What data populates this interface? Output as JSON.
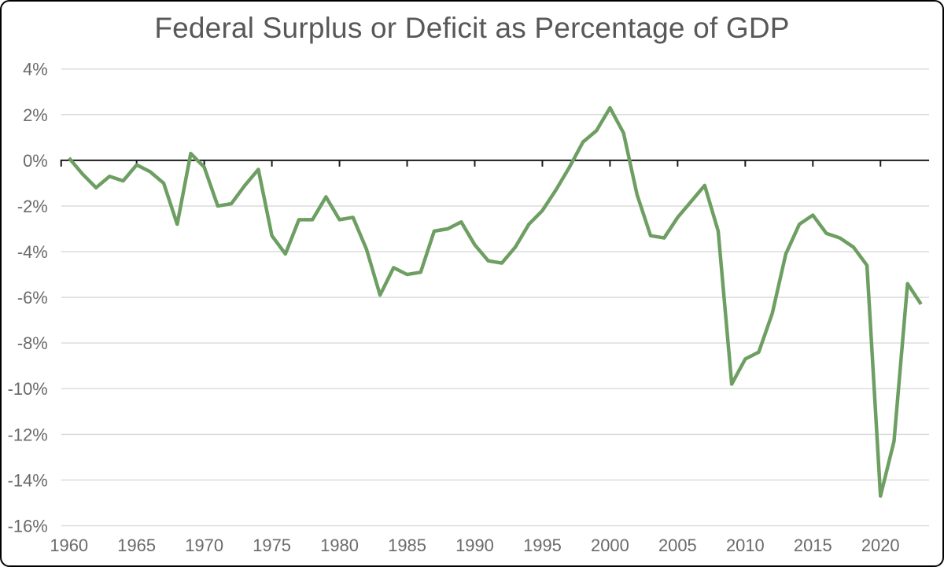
{
  "title": "Federal Surplus or Deficit as Percentage of GDP",
  "colors": {
    "line": "#6d9e62",
    "grid": "#dcdcdc",
    "zero_axis": "#1a1a1a",
    "axis_text": "#6a6a6a",
    "title_text": "#58585a",
    "border": "#000000",
    "background": "#ffffff"
  },
  "chart_data": {
    "type": "line",
    "title": "Federal Surplus or Deficit as Percentage of GDP",
    "series_name": "Federal surplus or deficit (% of GDP)",
    "xlabel": "",
    "ylabel": "",
    "grid": true,
    "legend_position": "none",
    "xlim": [
      1960,
      2023
    ],
    "ylim": [
      -16,
      4
    ],
    "x": [
      1960,
      1961,
      1962,
      1963,
      1964,
      1965,
      1966,
      1967,
      1968,
      1969,
      1970,
      1971,
      1972,
      1973,
      1974,
      1975,
      1976,
      1977,
      1978,
      1979,
      1980,
      1981,
      1982,
      1983,
      1984,
      1985,
      1986,
      1987,
      1988,
      1989,
      1990,
      1991,
      1992,
      1993,
      1994,
      1995,
      1996,
      1997,
      1998,
      1999,
      2000,
      2001,
      2002,
      2003,
      2004,
      2005,
      2006,
      2007,
      2008,
      2009,
      2010,
      2011,
      2012,
      2013,
      2014,
      2015,
      2016,
      2017,
      2018,
      2019,
      2020,
      2021,
      2022,
      2023
    ],
    "values": [
      0.1,
      -0.6,
      -1.2,
      -0.7,
      -0.9,
      -0.2,
      -0.5,
      -1.0,
      -2.8,
      0.3,
      -0.3,
      -2.0,
      -1.9,
      -1.1,
      -0.4,
      -3.3,
      -4.1,
      -2.6,
      -2.6,
      -1.6,
      -2.6,
      -2.5,
      -3.9,
      -5.9,
      -4.7,
      -5.0,
      -4.9,
      -3.1,
      -3.0,
      -2.7,
      -3.7,
      -4.4,
      -4.5,
      -3.8,
      -2.8,
      -2.2,
      -1.3,
      -0.3,
      0.8,
      1.3,
      2.3,
      1.2,
      -1.5,
      -3.3,
      -3.4,
      -2.5,
      -1.8,
      -1.1,
      -3.1,
      -9.8,
      -8.7,
      -8.4,
      -6.7,
      -4.1,
      -2.8,
      -2.4,
      -3.2,
      -3.4,
      -3.8,
      -4.6,
      -14.7,
      -12.3,
      -5.4,
      -6.3
    ],
    "y_ticks": [
      {
        "value": 4,
        "label": "4%"
      },
      {
        "value": 2,
        "label": "2%"
      },
      {
        "value": 0,
        "label": "0%"
      },
      {
        "value": -2,
        "label": "-2%"
      },
      {
        "value": -4,
        "label": "-4%"
      },
      {
        "value": -6,
        "label": "-6%"
      },
      {
        "value": -8,
        "label": "-8%"
      },
      {
        "value": -10,
        "label": "-10%"
      },
      {
        "value": -12,
        "label": "-12%"
      },
      {
        "value": -14,
        "label": "-14%"
      },
      {
        "value": -16,
        "label": "-16%"
      }
    ],
    "x_ticks": [
      {
        "value": 1960,
        "label": "1960"
      },
      {
        "value": 1965,
        "label": "1965"
      },
      {
        "value": 1970,
        "label": "1970"
      },
      {
        "value": 1975,
        "label": "1975"
      },
      {
        "value": 1980,
        "label": "1980"
      },
      {
        "value": 1985,
        "label": "1985"
      },
      {
        "value": 1990,
        "label": "1990"
      },
      {
        "value": 1995,
        "label": "1995"
      },
      {
        "value": 2000,
        "label": "2000"
      },
      {
        "value": 2005,
        "label": "2005"
      },
      {
        "value": 2010,
        "label": "2010"
      },
      {
        "value": 2015,
        "label": "2015"
      },
      {
        "value": 2020,
        "label": "2020"
      }
    ]
  }
}
